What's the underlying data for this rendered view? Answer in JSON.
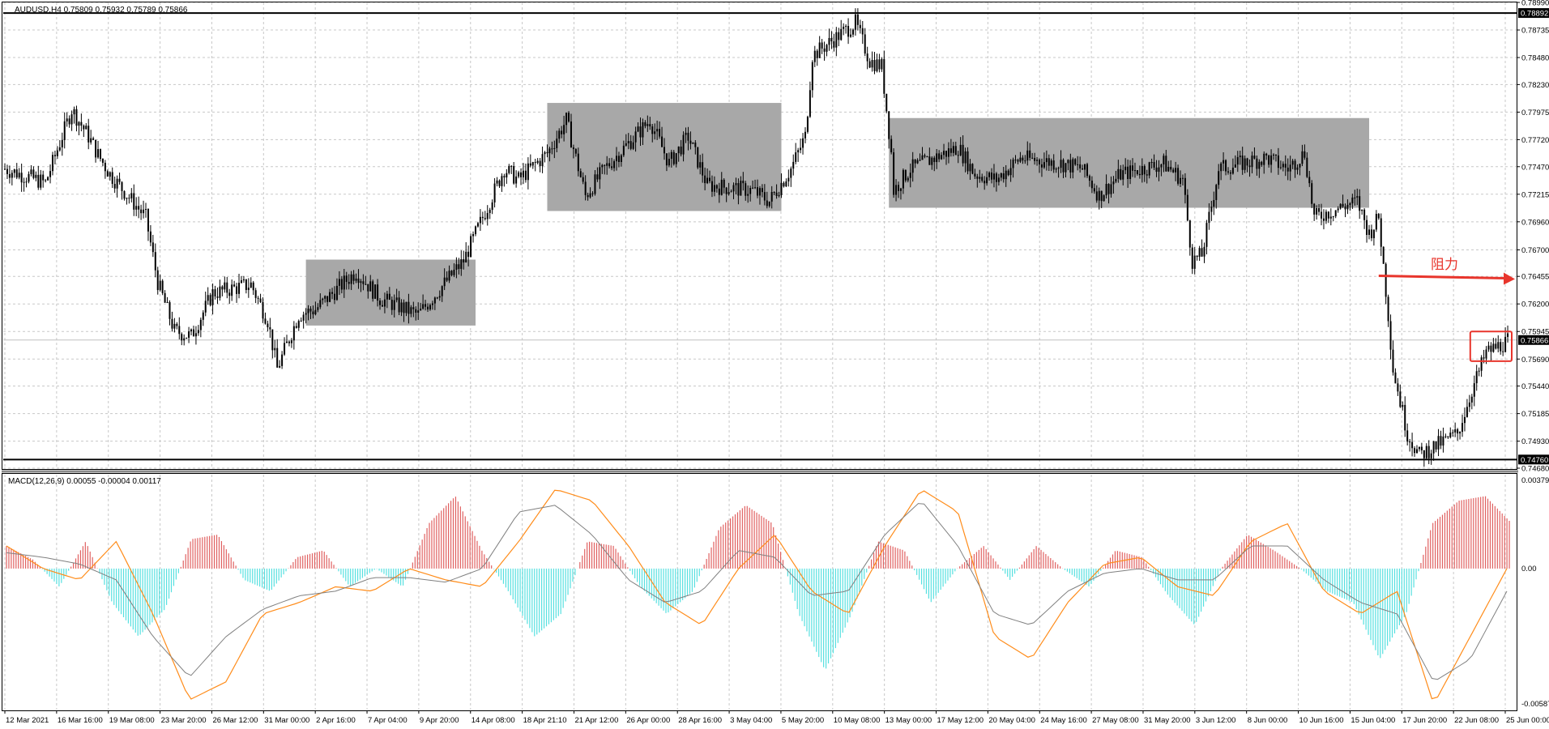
{
  "header": {
    "symbol_info": "AUDUSD,H4  0.75809 0.75932 0.75789 0.75866"
  },
  "macd": {
    "label": "MACD(12,26,9) 0.00055 -0.00004 0.00117",
    "axis_labels": [
      "0.00379",
      "0.00",
      "-0.00587"
    ],
    "hist_pos_color": "#e06060",
    "hist_neg_color": "#56e0e0",
    "macd_line_color": "#ff8c1a",
    "signal_line_color": "#808080"
  },
  "annotation": {
    "label": "阻力",
    "color": "#e8352c",
    "arrow_from_price": 0.7646,
    "arrow_to": "right-edge"
  },
  "colors": {
    "candle": "#000000",
    "grid": "#c8c8c8",
    "zone_fill": "#a8a8a8",
    "current_price_line": "#c0c0c0"
  },
  "chart_data": {
    "type": "candlestick",
    "title": "AUDUSD,H4",
    "ylim": [
      0.7468,
      0.7899
    ],
    "y_axis_labels": [
      "0.78990",
      "0.78735",
      "0.78480",
      "0.78230",
      "0.77975",
      "0.77720",
      "0.77470",
      "0.77215",
      "0.76960",
      "0.76700",
      "0.76455",
      "0.76200",
      "0.75945",
      "0.75690",
      "0.75440",
      "0.75185",
      "0.74930",
      "0.74680"
    ],
    "highlighted_prices": [
      "0.78892",
      "0.75866",
      "0.74760"
    ],
    "x_axis_labels": [
      "12 Mar 2021",
      "16 Mar 16:00",
      "19 Mar 08:00",
      "23 Mar 20:00",
      "26 Mar 12:00",
      "31 Mar 00:00",
      "2 Apr 16:00",
      "7 Apr 04:00",
      "9 Apr 20:00",
      "14 Apr 08:00",
      "18 Apr 21:10",
      "21 Apr 12:00",
      "26 Apr 00:00",
      "28 Apr 16:00",
      "3 May 04:00",
      "5 May 20:00",
      "10 May 08:00",
      "13 May 00:00",
      "17 May 12:00",
      "20 May 04:00",
      "24 May 16:00",
      "27 May 08:00",
      "31 May 20:00",
      "3 Jun 12:00",
      "8 Jun 00:00",
      "10 Jun 16:00",
      "15 Jun 04:00",
      "17 Jun 20:00",
      "22 Jun 08:00",
      "25 Jun 00:00"
    ],
    "horizontal_lines": [
      0.78892,
      0.7476
    ],
    "current_price": 0.75866,
    "range_zones": [
      {
        "from": "2 Apr 00:00",
        "to": "13 Apr 20:00",
        "top": 0.7661,
        "bottom": 0.76
      },
      {
        "from": "18 Apr 20:00",
        "to": "5 May 04:00",
        "top": 0.7806,
        "bottom": 0.7706
      },
      {
        "from": "12 May 16:00",
        "to": "15 Jun 04:00",
        "top": 0.7792,
        "bottom": 0.7709
      }
    ],
    "price_path": [
      {
        "date": "12 Mar 2021",
        "close": 0.7745
      },
      {
        "date": "14 Mar 20:00",
        "close": 0.7732
      },
      {
        "date": "16 Mar 16:00",
        "close": 0.78
      },
      {
        "date": "17 Mar 20:00",
        "close": 0.7775
      },
      {
        "date": "18 Mar 12:00",
        "close": 0.7758
      },
      {
        "date": "19 Mar 08:00",
        "close": 0.774
      },
      {
        "date": "21 Mar 20:00",
        "close": 0.77
      },
      {
        "date": "22 Mar 16:00",
        "close": 0.764
      },
      {
        "date": "23 Mar 20:00",
        "close": 0.7595
      },
      {
        "date": "25 Mar 00:00",
        "close": 0.759
      },
      {
        "date": "26 Mar 12:00",
        "close": 0.763
      },
      {
        "date": "29 Mar 04:00",
        "close": 0.7638
      },
      {
        "date": "30 Mar 08:00",
        "close": 0.7605
      },
      {
        "date": "31 Mar 00:00",
        "close": 0.756
      },
      {
        "date": "1 Apr 12:00",
        "close": 0.761
      },
      {
        "date": "2 Apr 16:00",
        "close": 0.7615
      },
      {
        "date": "5 Apr 12:00",
        "close": 0.765
      },
      {
        "date": "7 Apr 04:00",
        "close": 0.7625
      },
      {
        "date": "9 Apr 20:00",
        "close": 0.761
      },
      {
        "date": "13 Apr 00:00",
        "close": 0.766
      },
      {
        "date": "14 Apr 08:00",
        "close": 0.77
      },
      {
        "date": "15 Apr 20:00",
        "close": 0.7745
      },
      {
        "date": "16 Apr 20:00",
        "close": 0.7735
      },
      {
        "date": "18 Apr 21:10",
        "close": 0.776
      },
      {
        "date": "20 Apr 04:00",
        "close": 0.779
      },
      {
        "date": "21 Apr 12:00",
        "close": 0.772
      },
      {
        "date": "22 Apr 20:00",
        "close": 0.7745
      },
      {
        "date": "26 Apr 00:00",
        "close": 0.779
      },
      {
        "date": "27 Apr 08:00",
        "close": 0.775
      },
      {
        "date": "28 Apr 16:00",
        "close": 0.7775
      },
      {
        "date": "30 Apr 00:00",
        "close": 0.773
      },
      {
        "date": "3 May 04:00",
        "close": 0.7725
      },
      {
        "date": "4 May 08:00",
        "close": 0.7715
      },
      {
        "date": "5 May 20:00",
        "close": 0.7745
      },
      {
        "date": "6 May 20:00",
        "close": 0.7775
      },
      {
        "date": "7 May 08:00",
        "close": 0.785
      },
      {
        "date": "10 May 08:00",
        "close": 0.788
      },
      {
        "date": "11 May 08:00",
        "close": 0.7845
      },
      {
        "date": "12 May 04:00",
        "close": 0.784
      },
      {
        "date": "12 May 20:00",
        "close": 0.776
      },
      {
        "date": "13 May 00:00",
        "close": 0.7725
      },
      {
        "date": "14 May 04:00",
        "close": 0.7745
      },
      {
        "date": "17 May 12:00",
        "close": 0.7765
      },
      {
        "date": "18 May 16:00",
        "close": 0.774
      },
      {
        "date": "20 May 04:00",
        "close": 0.7735
      },
      {
        "date": "21 May 20:00",
        "close": 0.7755
      },
      {
        "date": "24 May 16:00",
        "close": 0.775
      },
      {
        "date": "26 May 04:00",
        "close": 0.7745
      },
      {
        "date": "27 May 08:00",
        "close": 0.772
      },
      {
        "date": "28 May 20:00",
        "close": 0.774
      },
      {
        "date": "31 May 20:00",
        "close": 0.775
      },
      {
        "date": "2 Jun 04:00",
        "close": 0.7735
      },
      {
        "date": "2 Jun 20:00",
        "close": 0.766
      },
      {
        "date": "3 Jun 12:00",
        "close": 0.7665
      },
      {
        "date": "4 Jun 16:00",
        "close": 0.7745
      },
      {
        "date": "8 Jun 00:00",
        "close": 0.7755
      },
      {
        "date": "9 Jun 12:00",
        "close": 0.7745
      },
      {
        "date": "10 Jun 16:00",
        "close": 0.776
      },
      {
        "date": "11 Jun 08:00",
        "close": 0.77
      },
      {
        "date": "14 Jun 08:00",
        "close": 0.7715
      },
      {
        "date": "15 Jun 04:00",
        "close": 0.7685
      },
      {
        "date": "15 Jun 20:00",
        "close": 0.77
      },
      {
        "date": "16 Jun 12:00",
        "close": 0.761
      },
      {
        "date": "16 Jun 20:00",
        "close": 0.756
      },
      {
        "date": "17 Jun 20:00",
        "close": 0.75
      },
      {
        "date": "18 Jun 16:00",
        "close": 0.748
      },
      {
        "date": "21 Jun 08:00",
        "close": 0.75
      },
      {
        "date": "22 Jun 08:00",
        "close": 0.754
      },
      {
        "date": "23 Jun 08:00",
        "close": 0.7575
      },
      {
        "date": "24 Jun 08:00",
        "close": 0.7582
      },
      {
        "date": "25 Jun 00:00",
        "close": 0.75866
      }
    ],
    "macd_histogram": [
      0.001,
      0.0004,
      -0.0008,
      0.0012,
      -0.0015,
      -0.003,
      -0.0018,
      0.0013,
      0.0015,
      -0.0005,
      -0.001,
      0.0005,
      0.0008,
      -0.0008,
      0.0,
      -0.0008,
      0.002,
      0.0032,
      0.0008,
      -0.001,
      -0.003,
      -0.002,
      0.0012,
      0.001,
      -0.0008,
      -0.002,
      -0.001,
      0.0018,
      0.0028,
      0.002,
      -0.002,
      -0.0045,
      -0.002,
      0.0012,
      0.0008,
      -0.0015,
      0.0,
      0.001,
      -0.0005,
      0.001,
      0.0,
      -0.0008,
      0.0008,
      0.0005,
      -0.0012,
      -0.0025,
      0.0,
      0.0015,
      0.0008,
      0.0,
      -0.001,
      -0.0015,
      -0.004,
      -0.002,
      0.002,
      0.003,
      0.0032,
      0.002
    ],
    "macd_line": [
      0.001,
      0.0,
      -0.0005,
      0.0012,
      -0.002,
      -0.0058,
      -0.005,
      -0.002,
      -0.0015,
      -0.0008,
      -0.001,
      0.0,
      -0.0005,
      -0.0008,
      0.0012,
      0.0035,
      0.003,
      0.001,
      -0.0015,
      -0.0025,
      0.0,
      0.0015,
      -0.001,
      -0.002,
      0.001,
      0.0035,
      0.0025,
      -0.003,
      -0.004,
      -0.0015,
      0.0002,
      0.0005,
      -0.0008,
      -0.0012,
      0.0012,
      0.002,
      -0.001,
      -0.002,
      -0.001,
      -0.006,
      -0.003,
      0.0
    ],
    "signal_line": [
      0.0007,
      0.0005,
      0.0002,
      -0.0005,
      -0.003,
      -0.0048,
      -0.003,
      -0.0018,
      -0.0012,
      -0.001,
      -0.0004,
      -0.0004,
      -0.0006,
      0.0,
      0.0025,
      0.0028,
      0.0015,
      -0.0005,
      -0.0015,
      -0.001,
      0.0008,
      0.0005,
      -0.0012,
      -0.001,
      0.0015,
      0.003,
      0.001,
      -0.002,
      -0.0025,
      -0.001,
      -0.0002,
      0.0,
      -0.0005,
      -0.0005,
      0.001,
      0.001,
      -0.0005,
      -0.0015,
      -0.002,
      -0.005,
      -0.004,
      -0.001
    ]
  }
}
